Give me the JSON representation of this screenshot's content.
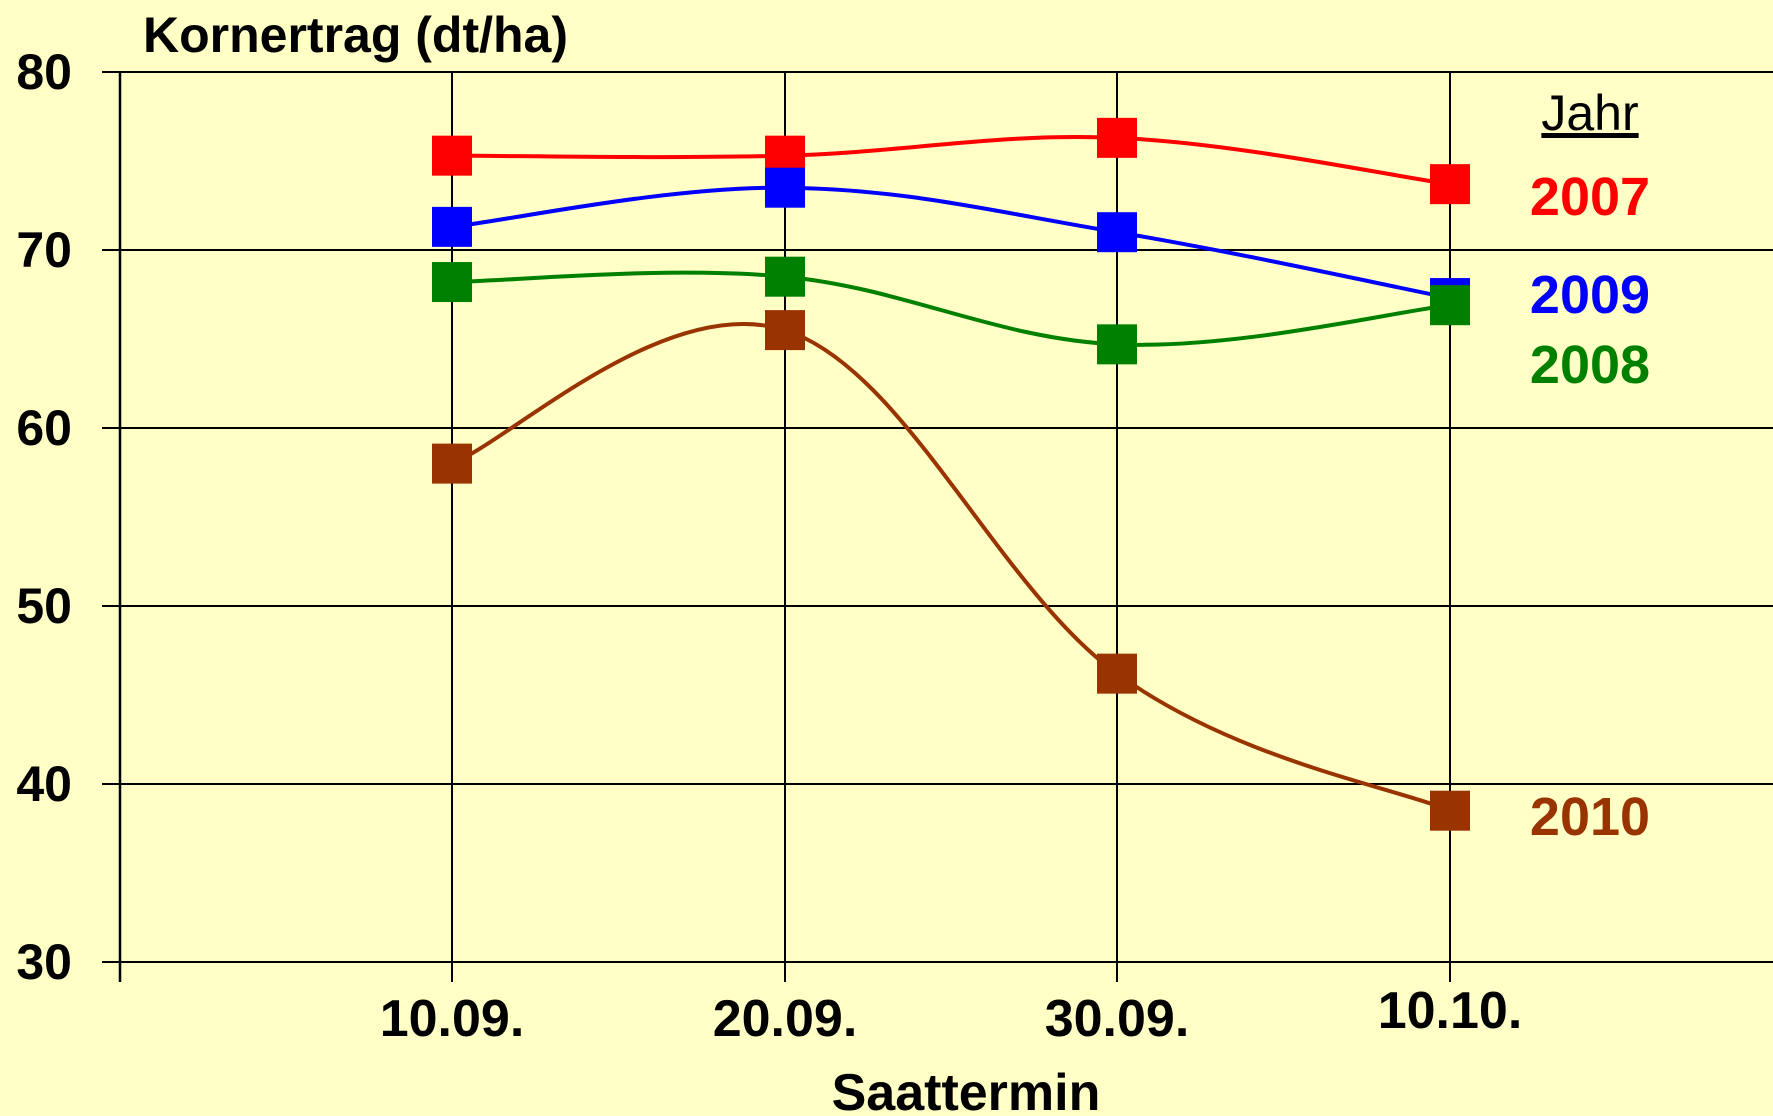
{
  "chart_data": {
    "type": "line",
    "title": "",
    "ylabel": "Kornertrag (dt/ha)",
    "xlabel": "Saattermin",
    "categories": [
      "10.09.",
      "20.09.",
      "30.09.",
      "10.10."
    ],
    "ylim": [
      30,
      80
    ],
    "yticks": [
      30,
      40,
      50,
      60,
      70,
      80
    ],
    "grid": true,
    "legend": {
      "title": "Jahr",
      "placement": "right"
    },
    "series": [
      {
        "name": "2007",
        "color": "#FF0000",
        "values": [
          75.3,
          75.3,
          76.3,
          73.7
        ]
      },
      {
        "name": "2009",
        "color": "#0000FF",
        "values": [
          71.3,
          73.5,
          71.0,
          67.3
        ]
      },
      {
        "name": "2008",
        "color": "#008000",
        "values": [
          68.2,
          68.5,
          64.7,
          66.9
        ]
      },
      {
        "name": "2010",
        "color": "#993300",
        "values": [
          58.0,
          65.5,
          46.2,
          38.5
        ]
      }
    ]
  }
}
